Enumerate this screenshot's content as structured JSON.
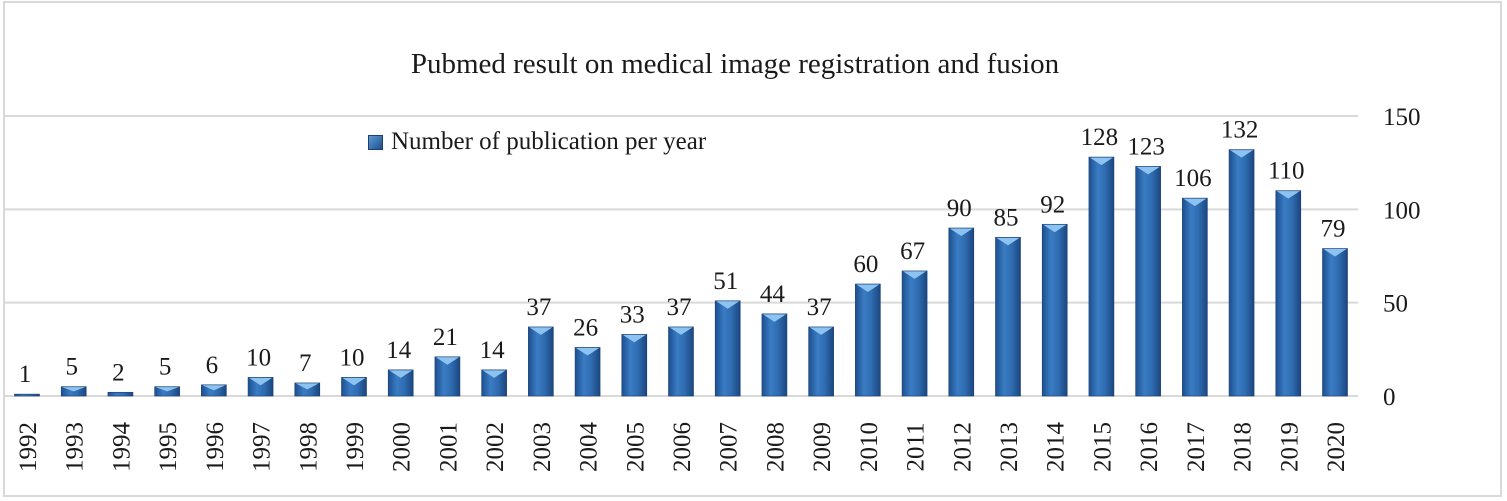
{
  "chart_data": {
    "type": "bar",
    "title": "Pubmed result on medical image registration and fusion",
    "categories": [
      "1992",
      "1993",
      "1994",
      "1995",
      "1996",
      "1997",
      "1998",
      "1999",
      "2000",
      "2001",
      "2002",
      "2003",
      "2004",
      "2005",
      "2006",
      "2007",
      "2008",
      "2009",
      "2010",
      "2011",
      "2012",
      "2013",
      "2014",
      "2015",
      "2016",
      "2017",
      "2018",
      "2019",
      "2020"
    ],
    "series": [
      {
        "name": "Number of publication per year",
        "values": [
          1,
          5,
          2,
          5,
          6,
          10,
          7,
          10,
          14,
          21,
          14,
          37,
          26,
          33,
          37,
          51,
          44,
          37,
          60,
          67,
          90,
          85,
          92,
          128,
          123,
          106,
          132,
          110,
          79
        ]
      }
    ],
    "xlabel": "",
    "ylabel": "",
    "ylim": [
      0,
      150
    ],
    "yticks": [
      0,
      50,
      100,
      150
    ],
    "y_axis_side": "right",
    "grid": true,
    "legend": "top-left",
    "data_labels": true,
    "x_tick_rotation": -90,
    "bar_color": "#2e6db3"
  }
}
